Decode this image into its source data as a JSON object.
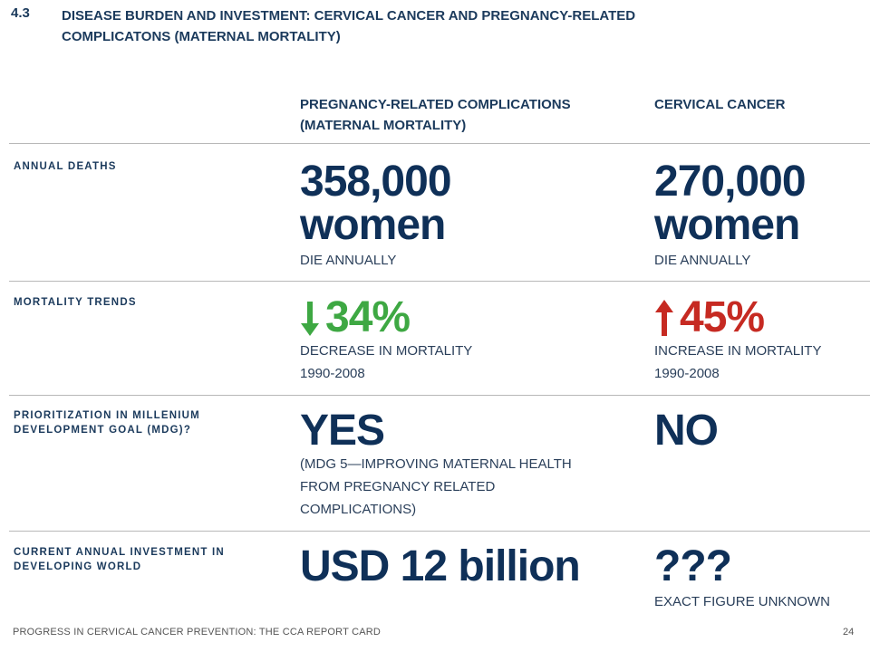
{
  "header": {
    "section_number": "4.3",
    "title": "DISEASE BURDEN AND INVESTMENT: CERVICAL CANCER AND PREGNANCY-RELATED COMPLICATONS (MATERNAL MORTALITY)"
  },
  "columns": {
    "col1_line1": "PREGNANCY-RELATED COMPLICATIONS",
    "col1_line2": "(MATERNAL MORTALITY)",
    "col2": "CERVICAL CANCER"
  },
  "rows": {
    "annual_deaths": {
      "label": "ANNUAL DEATHS",
      "col1_number": "358,000",
      "col1_unit": "women",
      "col1_note": "DIE ANNUALLY",
      "col2_number": "270,000",
      "col2_unit": "women",
      "col2_note": "DIE ANNUALLY"
    },
    "mortality_trends": {
      "label": "MORTALITY TRENDS",
      "col1_value": "34%",
      "col1_icon": "down-arrow-icon",
      "col1_note": "DECREASE IN MORTALITY",
      "col1_period": "1990-2008",
      "col2_value": "45%",
      "col2_icon": "up-arrow-icon",
      "col2_note": "INCREASE IN MORTALITY",
      "col2_period": "1990-2008",
      "decrease_color": "#3ea843",
      "increase_color": "#c62a22"
    },
    "prioritization": {
      "label_line1": "PRIORITIZATION IN MILLENIUM",
      "label_line2": "DEVELOPMENT GOAL (MDG)?",
      "col1_value": "YES",
      "col1_note_line1": "(MDG 5—IMPROVING MATERNAL HEALTH",
      "col1_note_line2": "FROM PREGNANCY RELATED",
      "col1_note_line3": "COMPLICATIONS)",
      "col2_value": "NO"
    },
    "investment": {
      "label_line1": "CURRENT ANNUAL INVESTMENT IN",
      "label_line2": "DEVELOPING WORLD",
      "col1_value": "USD 12 billion",
      "col2_value": "???",
      "col2_note": "EXACT FIGURE UNKNOWN"
    }
  },
  "footer": {
    "left": "PROGRESS IN CERVICAL CANCER PREVENTION: THE CCA REPORT CARD",
    "page_number": "24"
  }
}
